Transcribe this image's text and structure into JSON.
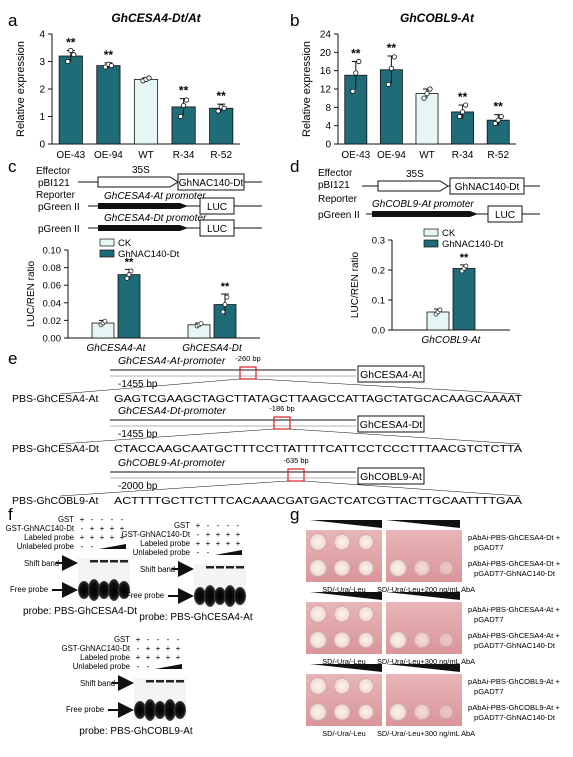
{
  "panel_letters": {
    "a": "a",
    "b": "b",
    "c": "c",
    "d": "d",
    "e": "e",
    "f": "f",
    "g": "g"
  },
  "chart_data": [
    {
      "id": "a",
      "type": "bar",
      "title": "GhCESA4-Dt/At",
      "ylabel": "Relative expression",
      "ylim": [
        0,
        4
      ],
      "yticks": [
        0,
        1,
        2,
        3,
        4
      ],
      "categories": [
        "OE-43",
        "OE-94",
        "WT",
        "R-34",
        "R-52"
      ],
      "values": [
        3.2,
        2.85,
        2.35,
        1.35,
        1.3
      ],
      "errors": [
        0.2,
        0.1,
        0.05,
        0.3,
        0.15
      ],
      "points": [
        [
          3.0,
          3.4,
          3.25
        ],
        [
          2.8,
          2.9,
          2.85
        ],
        [
          2.3,
          2.35,
          2.4
        ],
        [
          1.0,
          1.4,
          1.6
        ],
        [
          1.2,
          1.35,
          1.3
        ]
      ],
      "significance": [
        "**",
        "**",
        "",
        "**",
        "**"
      ],
      "colors": [
        "#1f6b77",
        "#1f6b77",
        "#e6f6f4",
        "#1f6b77",
        "#1f6b77"
      ]
    },
    {
      "id": "b",
      "type": "bar",
      "title": "GhCOBL9-At",
      "ylabel": "Relative expression",
      "ylim": [
        0,
        24
      ],
      "yticks": [
        0,
        4,
        8,
        12,
        16,
        20,
        24
      ],
      "categories": [
        "OE-43",
        "OE-94",
        "WT",
        "R-34",
        "R-52"
      ],
      "values": [
        15,
        16.2,
        11,
        7,
        5.2
      ],
      "errors": [
        3,
        3,
        1,
        1.5,
        1.2
      ],
      "points": [
        [
          11.5,
          15.5,
          18
        ],
        [
          13,
          16.5,
          19
        ],
        [
          10,
          11,
          12
        ],
        [
          6,
          7,
          8.5
        ],
        [
          4.5,
          5.2,
          6
        ]
      ],
      "significance": [
        "**",
        "**",
        "",
        "**",
        "**"
      ],
      "colors": [
        "#1f6b77",
        "#1f6b77",
        "#e6f6f4",
        "#1f6b77",
        "#1f6b77"
      ]
    },
    {
      "id": "c",
      "type": "bar",
      "ylabel": "LUC/REN ratio",
      "ylim": [
        0,
        0.1
      ],
      "yticks": [
        "0.00",
        "0.02",
        "0.04",
        "0.06",
        "0.08",
        "0.10"
      ],
      "categories": [
        "GhCESA4-At",
        "GhCESA4-Dt"
      ],
      "series": [
        {
          "name": "CK",
          "values": [
            0.017,
            0.015
          ],
          "color": "#e6f6f4"
        },
        {
          "name": "GhNAC140-Dt",
          "values": [
            0.072,
            0.038
          ],
          "color": "#1f6b77"
        }
      ],
      "errors": [
        [
          0.003,
          0.002
        ],
        [
          0.006,
          0.012
        ]
      ],
      "significance": [
        "**",
        "**"
      ]
    },
    {
      "id": "d",
      "type": "bar",
      "ylabel": "LUC/REN ratio",
      "ylim": [
        0,
        0.3
      ],
      "yticks": [
        "0.0",
        "0.1",
        "0.2",
        "0.3"
      ],
      "categories": [
        "GhCOBL9-At"
      ],
      "series": [
        {
          "name": "CK",
          "values": [
            0.06
          ],
          "color": "#e6f6f4"
        },
        {
          "name": "GhNAC140-Dt",
          "values": [
            0.205
          ],
          "color": "#1f6b77"
        }
      ],
      "errors": [
        [
          0.01
        ],
        [
          0.012
        ]
      ],
      "significance": [
        "**"
      ]
    }
  ],
  "panel_c": {
    "effector_label": "Effector",
    "effector_vector": "pBI121",
    "promoter_35s": "35S",
    "gene_box": "GhNAC140-Dt",
    "reporter_label": "Reporter",
    "reporter_vector1": "pGreen II",
    "promoter1": "GhCESA4-At promoter",
    "reporter_vector2": "pGreen II",
    "promoter2": "GhCESA4-Dt promoter",
    "luc": "LUC"
  },
  "panel_d": {
    "effector_label": "Effector",
    "effector_vector": "pBI121",
    "promoter_35s": "35S",
    "gene_box": "GhNAC140-Dt",
    "reporter_label": "Reporter",
    "reporter_vector": "pGreen II",
    "promoter": "GhCOBL9-At promoter",
    "luc": "LUC"
  },
  "panel_e": {
    "rows": [
      {
        "promoter": "GhCESA4-At-promoter",
        "pos": "-260 bp",
        "start": "-1455 bp",
        "gene": "GhCESA4-At",
        "probe_label": "PBS-GhCESA4-At",
        "seq": "GAGTCGAAGCTAGCTTATAGCTTAAGCCATTAGCTATGCACAAGCAAAAT"
      },
      {
        "promoter": "GhCESA4-Dt-promoter",
        "pos": "-186 bp",
        "start": "-1455 bp",
        "gene": "GhCESA4-Dt",
        "probe_label": "PBS-GhCESA4-Dt",
        "seq": "CTACCAAGCAATGCTTTCCTTATTTTCATTCCTCCCTTTAACGTCTCTTA"
      },
      {
        "promoter": "GhCOBL9-At-promoter",
        "pos": "-635 bp",
        "start": "-2000 bp",
        "gene": "GhCOBL9-At",
        "probe_label": "PBS-GhCOBL9-At",
        "seq": "ACTTTTGCTTCTTTCACAAACGATGACTCATCGTTACTTGCAATTTTGAA"
      }
    ]
  },
  "panel_f": {
    "row_labels": [
      "GST",
      "GST-GhNAC140-Dt",
      "Labeled probe",
      "Unlabeled probe"
    ],
    "signs": [
      [
        "+",
        "-",
        "-",
        "-",
        "-"
      ],
      [
        "-",
        "+",
        "+",
        "+",
        "+"
      ],
      [
        "+",
        "+",
        "+",
        "+",
        "+"
      ],
      [
        "-",
        "-",
        "ramp",
        "ramp",
        "ramp"
      ]
    ],
    "shift_band": "Shift band",
    "free_probe": "Free probe",
    "captions": [
      "probe: PBS-GhCESA4-Dt",
      "probe: PBS-GhCESA4-At",
      "probe: PBS-GhCOBL9-At"
    ]
  },
  "panel_g": {
    "groups": [
      {
        "rows": [
          "pAbAi-PBS-GhCESA4-Dt + pGADT7",
          "pAbAi-PBS-GhCESA4-Dt + pGADT7-GhNAC140-Dt"
        ],
        "media": [
          "SD/-Ura/-Leu",
          "SD/-Ura/-Leu+200 ng/mL AbA"
        ]
      },
      {
        "rows": [
          "pAbAi-PBS-GhCESA4-At + pGADT7",
          "pAbAi-PBS-GhCESA4-At + pGADT7-GhNAC140-Dt"
        ],
        "media": [
          "SD/-Ura/-Leu",
          "SD/-Ura/-Leu+300 ng/mL AbA"
        ]
      },
      {
        "rows": [
          "pAbAi-PBS-GhCOBL9-At + pGADT7",
          "pAbAi-PBS-GhCOBL9-At + pGADT7-GhNAC140-Dt"
        ],
        "media": [
          "SD/-Ura/-Leu",
          "SD/-Ura/-Leu+300 ng/mL AbA"
        ]
      }
    ]
  }
}
